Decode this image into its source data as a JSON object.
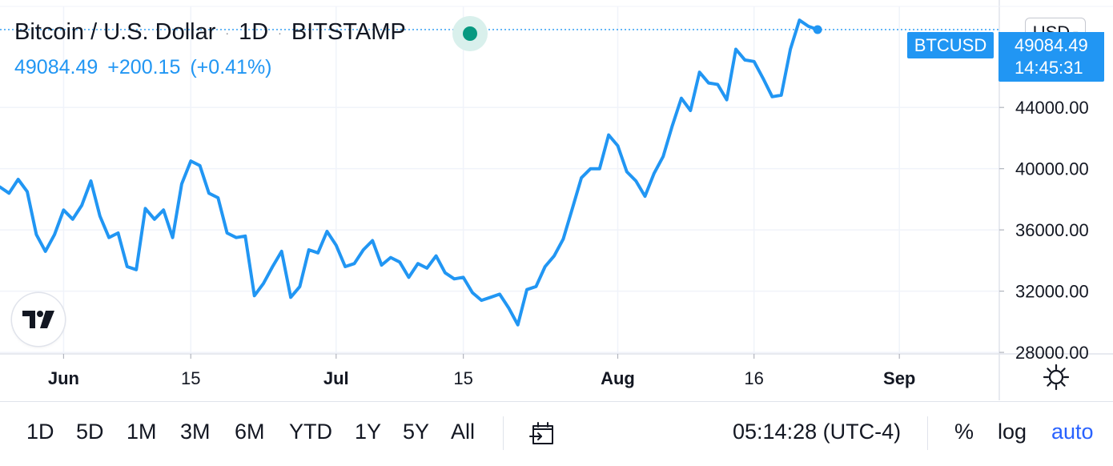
{
  "legend": {
    "title": "Bitcoin / U.S. Dollar",
    "interval": "1D",
    "exchange": "BITSTAMP",
    "separator": "·",
    "last_price": "49084.49",
    "change": "+200.15",
    "change_percent": "(+0.41%)"
  },
  "currency_button": {
    "label": "USD",
    "chevron": "▾"
  },
  "price_tag": {
    "symbol": "BTCUSD",
    "price": "49084.49",
    "countdown": "14:45:31"
  },
  "time_axis_labels": [
    "Jun",
    "15",
    "Jul",
    "15",
    "Aug",
    "16",
    "Sep"
  ],
  "bottom_bar": {
    "ranges": [
      "1D",
      "5D",
      "1M",
      "3M",
      "6M",
      "YTD",
      "1Y",
      "5Y",
      "All"
    ],
    "clock": "05:14:28 (UTC-4)",
    "percent_label": "%",
    "log_label": "log",
    "auto_label": "auto"
  },
  "icons": {
    "logo": "tradingview-logo-icon",
    "settings": "gear-icon",
    "date_range": "calendar-arrow-icon",
    "status": "market-open-dot-icon"
  },
  "colors": {
    "line": "#2196f3",
    "status": "#089981",
    "accent": "#2962ff",
    "grid": "#f0f3fa"
  },
  "chart_data": {
    "type": "line",
    "title": "Bitcoin / U.S. Dollar · 1D · BITSTAMP",
    "xlabel": "",
    "ylabel": "",
    "y_tick_labels": [
      "28000.00",
      "32000.00",
      "36000.00",
      "40000.00",
      "44000.00"
    ],
    "ylim": [
      27900,
      50600
    ],
    "xlim": [
      "2021-05-25",
      "2021-09-12"
    ],
    "grid": true,
    "series": [
      {
        "name": "BTCUSD",
        "x": [
          "2021-05-25",
          "2021-05-26",
          "2021-05-27",
          "2021-05-28",
          "2021-05-29",
          "2021-05-30",
          "2021-05-31",
          "2021-06-01",
          "2021-06-02",
          "2021-06-03",
          "2021-06-04",
          "2021-06-05",
          "2021-06-06",
          "2021-06-07",
          "2021-06-08",
          "2021-06-09",
          "2021-06-10",
          "2021-06-11",
          "2021-06-12",
          "2021-06-13",
          "2021-06-14",
          "2021-06-15",
          "2021-06-16",
          "2021-06-17",
          "2021-06-18",
          "2021-06-19",
          "2021-06-20",
          "2021-06-21",
          "2021-06-22",
          "2021-06-23",
          "2021-06-24",
          "2021-06-25",
          "2021-06-26",
          "2021-06-27",
          "2021-06-28",
          "2021-06-29",
          "2021-06-30",
          "2021-07-01",
          "2021-07-02",
          "2021-07-03",
          "2021-07-04",
          "2021-07-05",
          "2021-07-06",
          "2021-07-07",
          "2021-07-08",
          "2021-07-09",
          "2021-07-10",
          "2021-07-11",
          "2021-07-12",
          "2021-07-13",
          "2021-07-14",
          "2021-07-15",
          "2021-07-16",
          "2021-07-17",
          "2021-07-18",
          "2021-07-19",
          "2021-07-20",
          "2021-07-21",
          "2021-07-22",
          "2021-07-23",
          "2021-07-24",
          "2021-07-25",
          "2021-07-26",
          "2021-07-27",
          "2021-07-28",
          "2021-07-29",
          "2021-07-30",
          "2021-07-31",
          "2021-08-01",
          "2021-08-02",
          "2021-08-03",
          "2021-08-04",
          "2021-08-05",
          "2021-08-06",
          "2021-08-07",
          "2021-08-08",
          "2021-08-09",
          "2021-08-10",
          "2021-08-11",
          "2021-08-12",
          "2021-08-13",
          "2021-08-14",
          "2021-08-15",
          "2021-08-16",
          "2021-08-17",
          "2021-08-18",
          "2021-08-19",
          "2021-08-20",
          "2021-08-21",
          "2021-08-22"
        ],
        "y": [
          38800,
          38400,
          39300,
          38500,
          35700,
          34600,
          35700,
          37300,
          36700,
          37600,
          39200,
          36900,
          35500,
          35800,
          33600,
          33400,
          37400,
          36700,
          37300,
          35500,
          39000,
          40500,
          40200,
          38400,
          38100,
          35800,
          35500,
          35600,
          31700,
          32500,
          33600,
          34600,
          31600,
          32300,
          34700,
          34500,
          35900,
          35000,
          33600,
          33800,
          34700,
          35300,
          33700,
          34200,
          33900,
          32900,
          33800,
          33500,
          34300,
          33200,
          32800,
          32900,
          31900,
          31400,
          31600,
          31800,
          30900,
          29800,
          32100,
          32300,
          33600,
          34300,
          35400,
          37400,
          39400,
          40000,
          40000,
          42200,
          41500,
          39800,
          39200,
          38200,
          39700,
          40800,
          42800,
          44600,
          43800,
          46300,
          45600,
          45500,
          44500,
          47800,
          47100,
          47000,
          45900,
          44700,
          44800,
          47800,
          49700,
          49300
        ]
      }
    ],
    "last_point": {
      "x": "2021-08-23",
      "y": 49084.49
    }
  }
}
